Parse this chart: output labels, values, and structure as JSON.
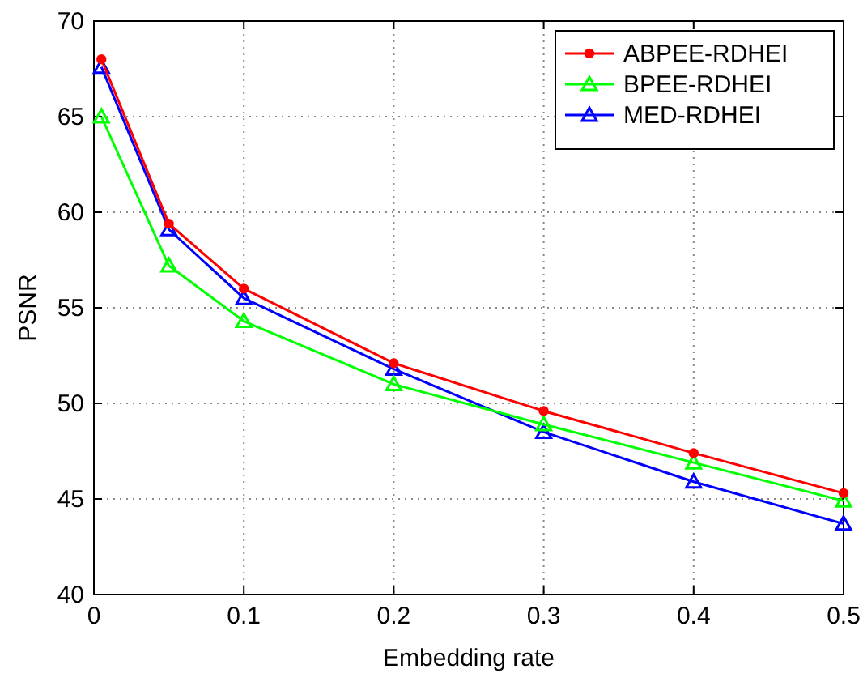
{
  "chart_data": {
    "type": "line",
    "xlabel": "Embedding rate",
    "ylabel": "PSNR",
    "x": [
      0.005,
      0.05,
      0.1,
      0.2,
      0.3,
      0.4,
      0.5
    ],
    "xlim": [
      0,
      0.5
    ],
    "xticks": [
      0,
      0.1,
      0.2,
      0.3,
      0.4,
      0.5
    ],
    "ylim": [
      40,
      70
    ],
    "yticks": [
      40,
      45,
      50,
      55,
      60,
      65,
      70
    ],
    "grid": true,
    "legend": "top right",
    "line_style": "solid",
    "series": [
      {
        "name": "ABPEE-RDHEI",
        "color": "#ff0000",
        "marker": "circle",
        "values": [
          68.0,
          59.4,
          56.0,
          52.1,
          49.6,
          47.4,
          45.3
        ]
      },
      {
        "name": "BPEE-RDHEI",
        "color": "#00ff00",
        "marker": "triangle",
        "values": [
          65.0,
          57.2,
          54.3,
          51.0,
          48.9,
          46.9,
          44.9
        ]
      },
      {
        "name": "MED-RDHEI",
        "color": "#0000ff",
        "marker": "triangle",
        "values": [
          67.6,
          59.1,
          55.5,
          51.8,
          48.5,
          45.9,
          43.7
        ]
      }
    ]
  }
}
